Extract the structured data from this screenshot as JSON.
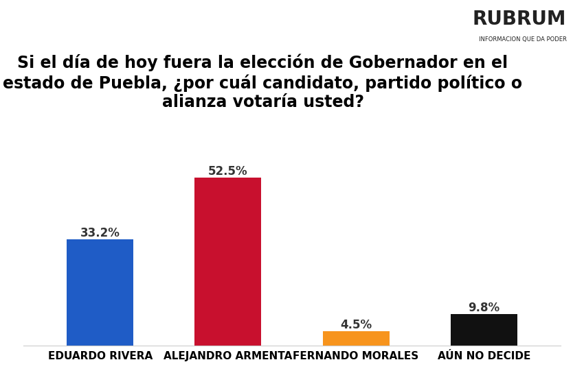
{
  "chart_data": {
    "type": "bar",
    "title": "Si el día de hoy fuera la elección de Gobernador en el estado de Puebla, ¿por cuál candidato, partido político o alianza votaría usted?",
    "logo": "RUBRUM",
    "logo_subtitle": "INFORMACION QUE DA PODER",
    "categories": [
      "EDUARDO RIVERA",
      "ALEJANDRO ARMENTA",
      "FERNANDO MORALES",
      "AÚN NO DECIDE"
    ],
    "values": [
      33.2,
      52.5,
      4.5,
      9.8
    ],
    "value_labels": [
      "33.2%",
      "52.5%",
      "4.5%",
      "9.8%"
    ],
    "colors": [
      "#1f5cc6",
      "#c8102e",
      "#f7941d",
      "#111111"
    ],
    "ylim": [
      0,
      60
    ],
    "grid": false,
    "data_labels": true,
    "tick_labels": "x"
  }
}
